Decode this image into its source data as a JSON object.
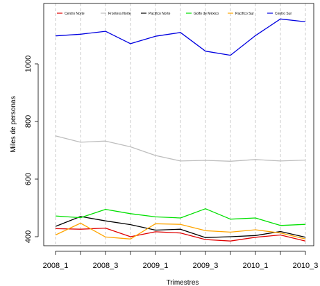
{
  "chart_data": {
    "type": "line",
    "title": "",
    "xlabel": "Trimestres",
    "ylabel": "Miles de personas",
    "x": [
      "2008_1",
      "2008_2",
      "2008_3",
      "2008_4",
      "2009_1",
      "2009_2",
      "2009_3",
      "2009_4",
      "2010_1",
      "2010_2",
      "2010_3"
    ],
    "x_tick_labels": [
      "2008_1",
      "2008_3",
      "2009_1",
      "2009_3",
      "2010_1",
      "2010_3"
    ],
    "y_ticks": [
      400,
      600,
      800,
      1000
    ],
    "ylim": [
      370,
      1160
    ],
    "grid": "vertical dashed lines at every quarter",
    "legend_position": "top",
    "series": [
      {
        "name": "Centro Norte",
        "color": "#e00000",
        "values": [
          428,
          426,
          430,
          400,
          417,
          413,
          390,
          385,
          398,
          406,
          385
        ]
      },
      {
        "name": "Frontera Norte",
        "color": "#bebebe",
        "values": [
          750,
          728,
          732,
          712,
          682,
          663,
          665,
          662,
          668,
          663,
          666
        ]
      },
      {
        "name": "Pacífico Norte",
        "color": "#000000",
        "values": [
          436,
          470,
          455,
          442,
          423,
          426,
          397,
          400,
          404,
          418,
          398
        ]
      },
      {
        "name": "Golfo de México",
        "color": "#00e000",
        "values": [
          472,
          466,
          495,
          480,
          469,
          465,
          497,
          461,
          465,
          439,
          443
        ]
      },
      {
        "name": "Pacífico Sur",
        "color": "#ffa500",
        "values": [
          406,
          447,
          399,
          392,
          445,
          443,
          421,
          416,
          424,
          413,
          392
        ]
      },
      {
        "name": "Centro Sur",
        "color": "#0000e0",
        "values": [
          1097,
          1103,
          1113,
          1070,
          1096,
          1109,
          1044,
          1030,
          1098,
          1156,
          1146
        ]
      }
    ]
  }
}
